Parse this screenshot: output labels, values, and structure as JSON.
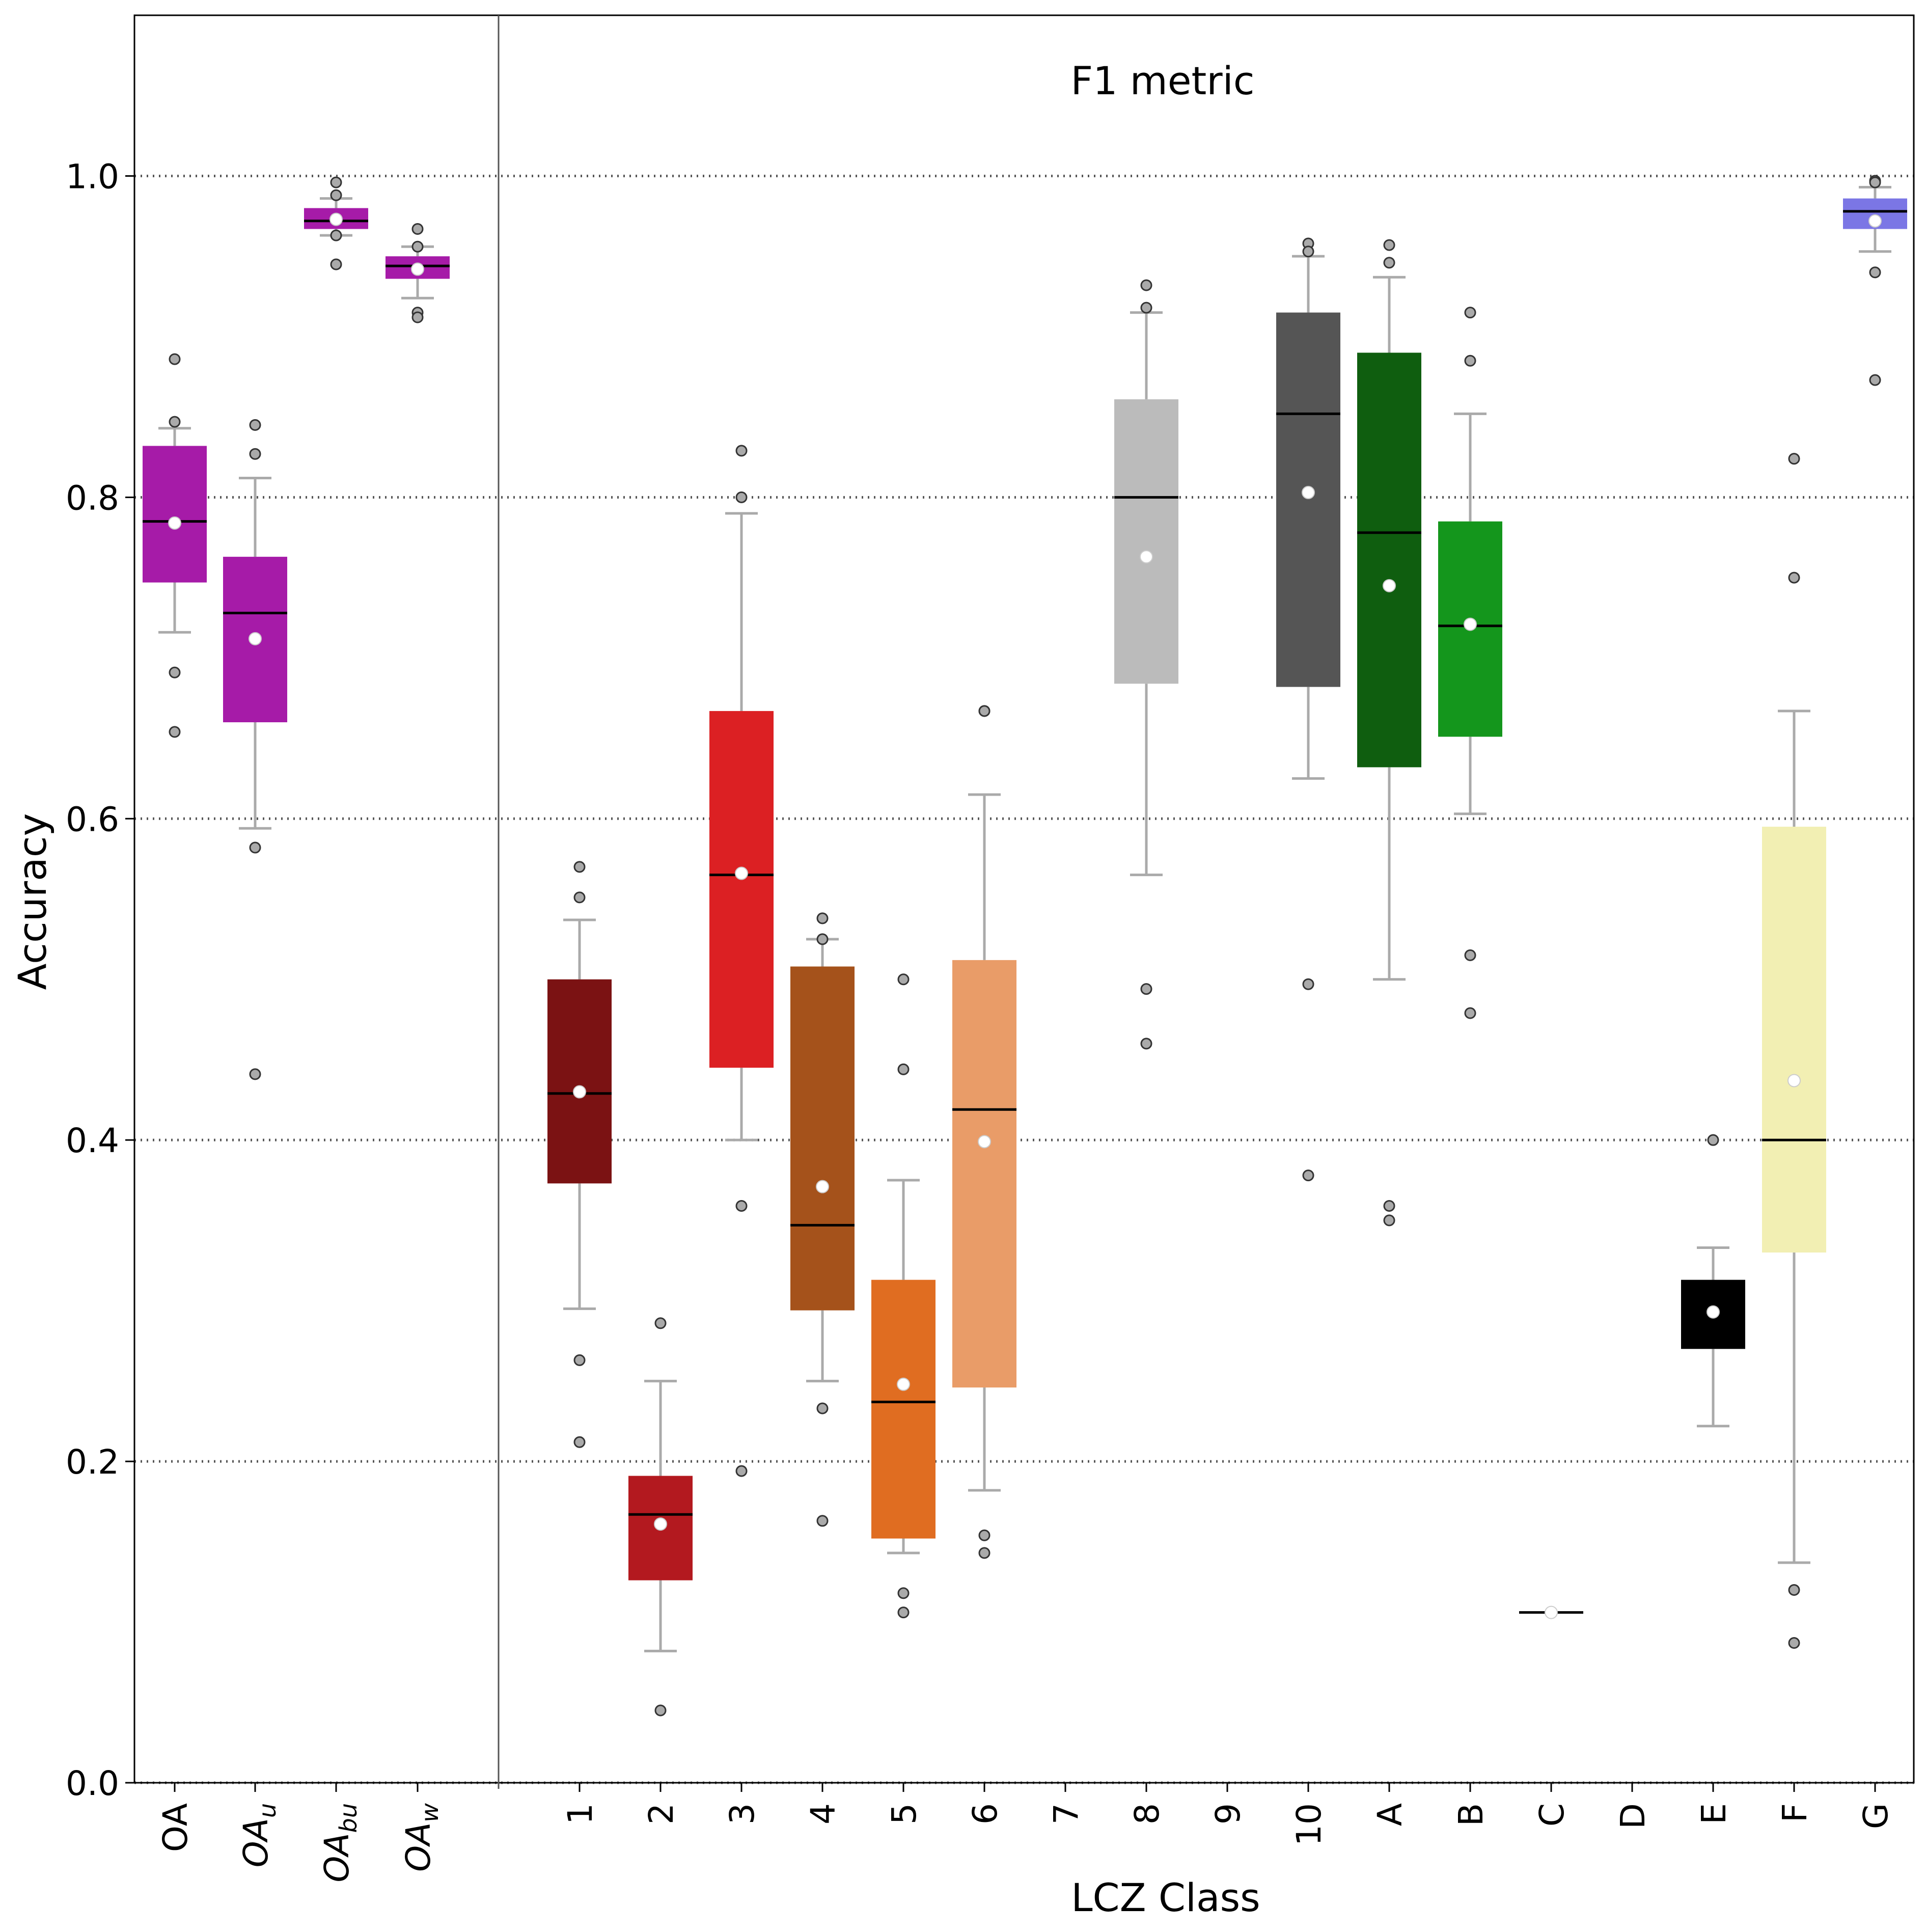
{
  "chart_data": {
    "type": "box",
    "title": "F1 metric",
    "xlabel": "LCZ Class",
    "ylabel": "Accuracy",
    "ylim": [
      0.0,
      1.1
    ],
    "yticks": [
      "0.0",
      "0.2",
      "0.4",
      "0.6",
      "0.8",
      "1.0"
    ],
    "grid": "horizontal dotted at 0.2, 0.4, 0.6, 0.8, 1.0",
    "groups": [
      {
        "label": "OA",
        "sub": "",
        "color": "#a61ba8",
        "q1": 0.747,
        "median": 0.785,
        "q3": 0.832,
        "whislo": 0.716,
        "whishi": 0.843,
        "mean": 0.784,
        "fliers": [
          0.886,
          0.847,
          0.691,
          0.654
        ]
      },
      {
        "label": "OA",
        "sub": "u",
        "color": "#a61ba8",
        "q1": 0.66,
        "median": 0.728,
        "q3": 0.763,
        "whislo": 0.594,
        "whishi": 0.812,
        "mean": 0.712,
        "fliers": [
          0.845,
          0.827,
          0.582,
          0.441
        ]
      },
      {
        "label": "OA",
        "sub": "bu",
        "color": "#a61ba8",
        "q1": 0.967,
        "median": 0.972,
        "q3": 0.98,
        "whislo": 0.963,
        "whishi": 0.986,
        "mean": 0.973,
        "fliers": [
          0.996,
          0.988,
          0.963,
          0.945
        ]
      },
      {
        "label": "OA",
        "sub": "w",
        "color": "#a61ba8",
        "q1": 0.936,
        "median": 0.944,
        "q3": 0.95,
        "whislo": 0.924,
        "whishi": 0.956,
        "mean": 0.942,
        "fliers": [
          0.967,
          0.956,
          0.915,
          0.912
        ]
      },
      {
        "label": "1",
        "color": "#7b1213",
        "q1": 0.373,
        "median": 0.429,
        "q3": 0.5,
        "whislo": 0.295,
        "whishi": 0.537,
        "mean": 0.43,
        "fliers": [
          0.57,
          0.551,
          0.263,
          0.212
        ]
      },
      {
        "label": "2",
        "color": "#b3191f",
        "q1": 0.126,
        "median": 0.167,
        "q3": 0.191,
        "whislo": 0.082,
        "whishi": 0.25,
        "mean": 0.161,
        "fliers": [
          0.286,
          0.045
        ]
      },
      {
        "label": "3",
        "color": "#dc2023",
        "q1": 0.445,
        "median": 0.565,
        "q3": 0.667,
        "whislo": 0.4,
        "whishi": 0.79,
        "mean": 0.566,
        "fliers": [
          0.829,
          0.8,
          0.359,
          0.194
        ]
      },
      {
        "label": "4",
        "color": "#a5521b",
        "q1": 0.294,
        "median": 0.347,
        "q3": 0.508,
        "whislo": 0.25,
        "whishi": 0.525,
        "mean": 0.371,
        "fliers": [
          0.538,
          0.525,
          0.233,
          0.163
        ]
      },
      {
        "label": "5",
        "color": "#e06d21",
        "q1": 0.152,
        "median": 0.237,
        "q3": 0.313,
        "whislo": 0.143,
        "whishi": 0.375,
        "mean": 0.248,
        "fliers": [
          0.5,
          0.444,
          0.118,
          0.106
        ]
      },
      {
        "label": "6",
        "color": "#e99c68",
        "q1": 0.246,
        "median": 0.419,
        "q3": 0.512,
        "whislo": 0.182,
        "whishi": 0.615,
        "mean": 0.399,
        "fliers": [
          0.667,
          0.667,
          0.154,
          0.143
        ]
      },
      {
        "label": "7",
        "color": "#ffffff"
      },
      {
        "label": "8",
        "color": "#bbbbbb",
        "q1": 0.684,
        "median": 0.8,
        "q3": 0.861,
        "whislo": 0.565,
        "whishi": 0.915,
        "mean": 0.763,
        "fliers": [
          0.932,
          0.918,
          0.494,
          0.46
        ]
      },
      {
        "label": "9",
        "color": "#ffffff"
      },
      {
        "label": "10",
        "color": "#555555",
        "q1": 0.682,
        "median": 0.852,
        "q3": 0.915,
        "whislo": 0.625,
        "whishi": 0.95,
        "mean": 0.803,
        "fliers": [
          0.958,
          0.953,
          0.497,
          0.378
        ]
      },
      {
        "label": "A",
        "color": "#0f5e0f",
        "q1": 0.632,
        "median": 0.778,
        "q3": 0.89,
        "whislo": 0.5,
        "whishi": 0.937,
        "mean": 0.745,
        "fliers": [
          0.957,
          0.946,
          0.359,
          0.35
        ]
      },
      {
        "label": "B",
        "color": "#14961c",
        "q1": 0.651,
        "median": 0.72,
        "q3": 0.785,
        "whislo": 0.603,
        "whishi": 0.852,
        "mean": 0.721,
        "fliers": [
          0.915,
          0.885,
          0.515,
          0.479
        ]
      },
      {
        "label": "C",
        "color": "#ffffff",
        "q1": 0.106,
        "median": 0.106,
        "q3": 0.106,
        "whislo": 0.106,
        "whishi": 0.106,
        "mean": 0.106,
        "fliers": []
      },
      {
        "label": "D",
        "color": "#ffffff"
      },
      {
        "label": "E",
        "color": "#000000",
        "q1": 0.27,
        "median": 0.285,
        "q3": 0.313,
        "whislo": 0.222,
        "whishi": 0.333,
        "mean": 0.293,
        "fliers": [
          0.4
        ]
      },
      {
        "label": "F",
        "color": "#f2efb3",
        "q1": 0.33,
        "median": 0.4,
        "q3": 0.595,
        "whislo": 0.137,
        "whishi": 0.667,
        "mean": 0.437,
        "fliers": [
          0.824,
          0.75,
          0.12,
          0.087
        ]
      },
      {
        "label": "G",
        "color": "#7b76e5",
        "q1": 0.967,
        "median": 0.978,
        "q3": 0.986,
        "whislo": 0.953,
        "whishi": 0.993,
        "mean": 0.972,
        "fliers": [
          0.997,
          0.996,
          0.94,
          0.873
        ]
      }
    ]
  }
}
